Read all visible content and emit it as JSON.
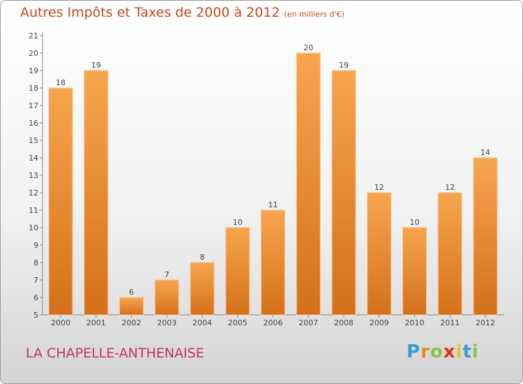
{
  "title": "Autres Impôts et Taxes de 2000 à 2012",
  "subtitle": "(en milliers d'€)",
  "place": "LA CHAPELLE-ANTHENAISE",
  "logo": {
    "letters": [
      "P",
      "r",
      "o",
      "x",
      "i",
      "t",
      "i"
    ],
    "colors": [
      "#3a9ad9",
      "#e08a1e",
      "#8bc34a",
      "#e0301e",
      "#f0c020",
      "#3a9ad9",
      "#8bc34a"
    ]
  },
  "chart_data": {
    "type": "bar",
    "categories": [
      "2000",
      "2001",
      "2002",
      "2003",
      "2004",
      "2005",
      "2006",
      "2007",
      "2008",
      "2009",
      "2010",
      "2011",
      "2012"
    ],
    "values": [
      18,
      19,
      6,
      7,
      8,
      10,
      11,
      20,
      19,
      12,
      10,
      12,
      14
    ],
    "ylim": [
      5,
      21
    ],
    "yticks": [
      5,
      6,
      7,
      8,
      9,
      10,
      11,
      12,
      13,
      14,
      15,
      16,
      17,
      18,
      19,
      20,
      21
    ],
    "grid": false,
    "bar_color": "#f0922e"
  }
}
